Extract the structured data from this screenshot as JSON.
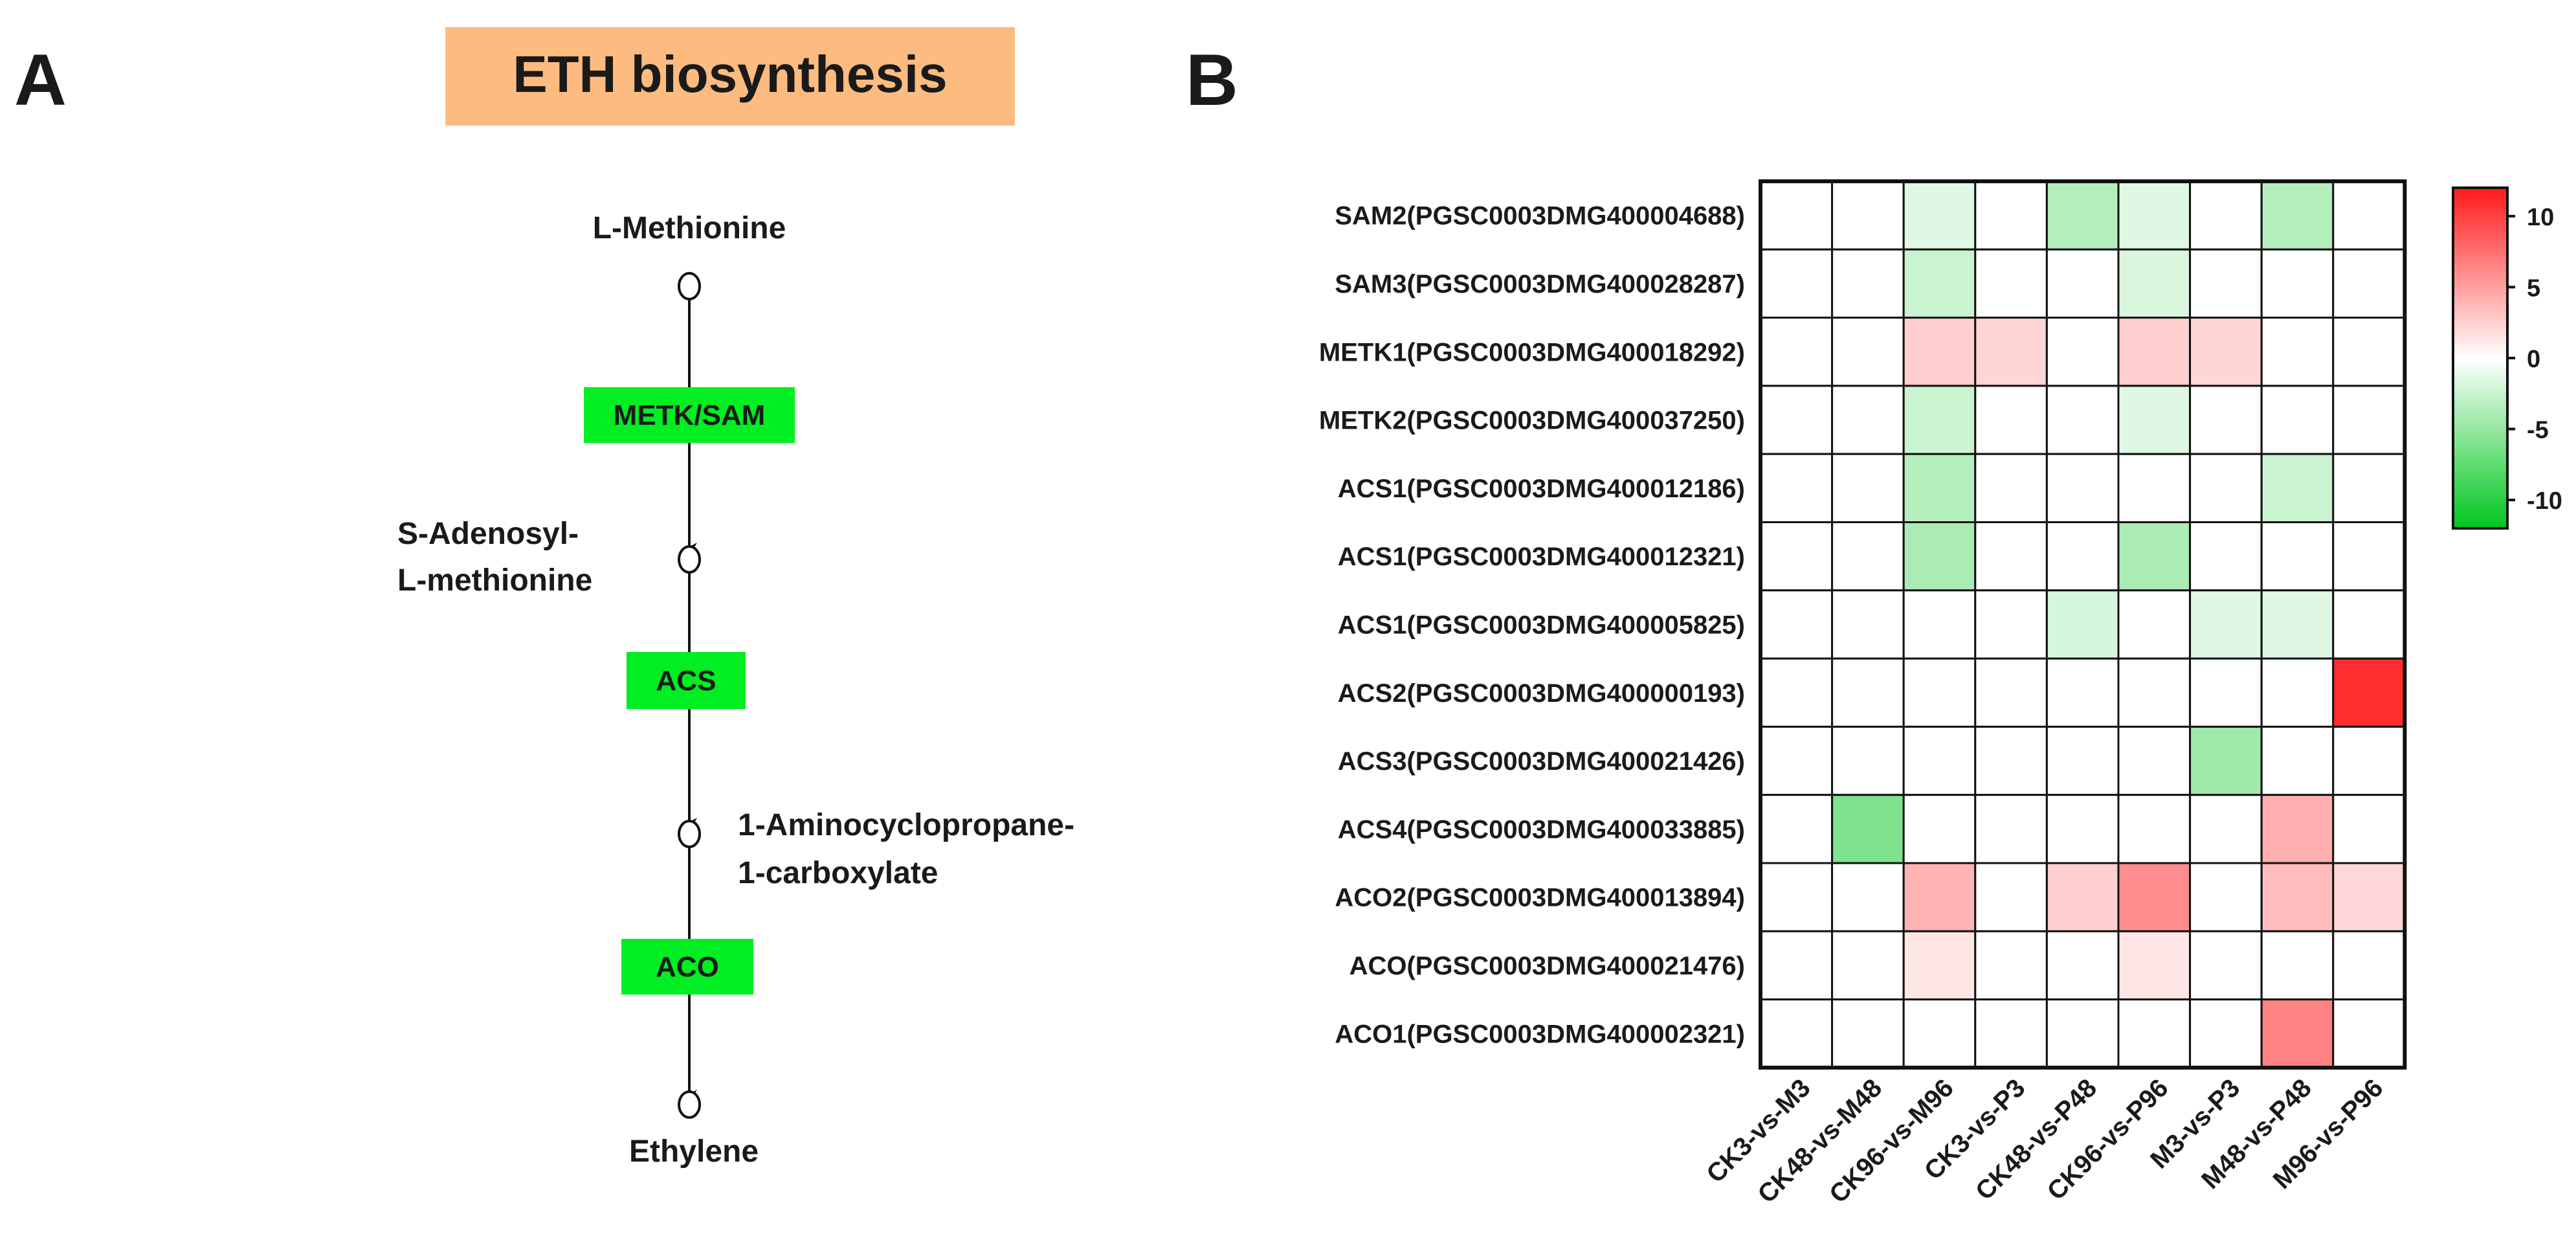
{
  "panel_a": {
    "label": "A",
    "title": "ETH biosynthesis",
    "title_bg": "#fdbb7f",
    "enzyme_color": "#00ee22",
    "compounds": [
      "L-Methionine",
      "S-Adenosyl-\nL-methionine",
      "1-Aminocyclopropane-\n1-carboxylate",
      "Ethylene"
    ],
    "enzymes": [
      "METK/SAM",
      "ACS",
      "ACO"
    ]
  },
  "panel_b": {
    "label": "B"
  },
  "chart_data": {
    "type": "heatmap",
    "rows": [
      "SAM2(PGSC0003DMG400004688)",
      "SAM3(PGSC0003DMG400028287)",
      "METK1(PGSC0003DMG400018292)",
      "METK2(PGSC0003DMG400037250)",
      "ACS1(PGSC0003DMG400012186)",
      "ACS1(PGSC0003DMG400012321)",
      "ACS1(PGSC0003DMG400005825)",
      "ACS2(PGSC0003DMG400000193)",
      "ACS3(PGSC0003DMG400021426)",
      "ACS4(PGSC0003DMG400033885)",
      "ACO2(PGSC0003DMG400013894)",
      "ACO(PGSC0003DMG400021476)",
      "ACO1(PGSC0003DMG400002321)"
    ],
    "columns": [
      "CK3-vs-M3",
      "CK48-vs-M48",
      "CK96-vs-M96",
      "CK3-vs-P3",
      "CK48-vs-P48",
      "CK96-vs-P96",
      "M3-vs-P3",
      "M48-vs-P48",
      "M96-vs-P96"
    ],
    "values": [
      [
        0,
        0,
        -1.5,
        0,
        -3.5,
        -1.5,
        0,
        -3.5,
        0
      ],
      [
        0,
        0,
        -2.5,
        0,
        0,
        -1.8,
        0,
        0,
        0
      ],
      [
        0,
        0,
        2.5,
        2.2,
        0,
        2.5,
        2.2,
        0,
        0
      ],
      [
        0,
        0,
        -2.5,
        0,
        0,
        -1.5,
        0,
        0,
        0
      ],
      [
        0,
        0,
        -3.5,
        0,
        0,
        0,
        0,
        -2.5,
        0
      ],
      [
        0,
        0,
        -4.0,
        0,
        0,
        -4.0,
        0,
        0,
        0
      ],
      [
        0,
        0,
        0,
        0,
        -2.0,
        0,
        -1.5,
        -1.5,
        0
      ],
      [
        0,
        0,
        0,
        0,
        0,
        0,
        0,
        0,
        11
      ],
      [
        0,
        0,
        0,
        0,
        0,
        0,
        -4.5,
        0,
        0
      ],
      [
        0,
        -6.0,
        0,
        0,
        0,
        0,
        0,
        4.2,
        0
      ],
      [
        0,
        0,
        4.0,
        0,
        2.5,
        6.0,
        0,
        3.5,
        2.0
      ],
      [
        0,
        0,
        1.3,
        0,
        0,
        1.3,
        0,
        0,
        0
      ],
      [
        0,
        0,
        0,
        0,
        0,
        0,
        0,
        6.5,
        0
      ]
    ],
    "colorbar": {
      "ticks": [
        "10",
        "5",
        "0",
        "-5",
        "-10"
      ],
      "min": -12,
      "max": 12,
      "low_color": "#00c61e",
      "mid_color": "#ffffff",
      "high_color": "#ff1a1a"
    }
  }
}
